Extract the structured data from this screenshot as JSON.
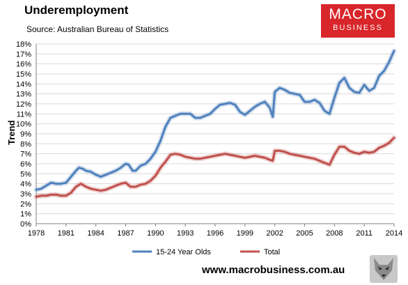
{
  "header": {
    "title": "Underemployment",
    "source": "Source: Australian Bureau of Statistics"
  },
  "logo": {
    "top": "MACRO",
    "bottom": "BUSINESS",
    "color": "#d9262a"
  },
  "footer": {
    "url": "www.macrobusiness.com.au",
    "emblem_icon": "wolf-head-icon"
  },
  "chart_data": {
    "type": "line",
    "title": "Underemployment",
    "ylabel": "Trend",
    "xlabel": "",
    "ylim": [
      0,
      18
    ],
    "xlim": [
      1978,
      2014
    ],
    "x_ticks": [
      "1978",
      "1981",
      "1984",
      "1987",
      "1990",
      "1993",
      "1996",
      "1999",
      "2002",
      "2005",
      "2008",
      "2011",
      "2014"
    ],
    "y_ticks": [
      "0%",
      "1%",
      "2%",
      "3%",
      "4%",
      "5%",
      "6%",
      "7%",
      "8%",
      "9%",
      "10%",
      "11%",
      "12%",
      "13%",
      "14%",
      "15%",
      "16%",
      "17%",
      "18%"
    ],
    "grid": true,
    "legend": "bottom",
    "series": [
      {
        "name": "15-24 Year Olds",
        "color": "#4f81bd",
        "points": [
          [
            1978.0,
            3.4
          ],
          [
            1978.5,
            3.5
          ],
          [
            1979.0,
            3.8
          ],
          [
            1979.5,
            4.1
          ],
          [
            1980.0,
            4.0
          ],
          [
            1980.5,
            4.0
          ],
          [
            1981.0,
            4.1
          ],
          [
            1981.5,
            4.7
          ],
          [
            1982.0,
            5.3
          ],
          [
            1982.3,
            5.6
          ],
          [
            1982.7,
            5.5
          ],
          [
            1983.0,
            5.3
          ],
          [
            1983.5,
            5.2
          ],
          [
            1984.0,
            4.9
          ],
          [
            1984.5,
            4.7
          ],
          [
            1985.0,
            4.9
          ],
          [
            1985.5,
            5.1
          ],
          [
            1986.0,
            5.3
          ],
          [
            1986.5,
            5.6
          ],
          [
            1987.0,
            6.0
          ],
          [
            1987.3,
            5.9
          ],
          [
            1987.7,
            5.3
          ],
          [
            1988.0,
            5.3
          ],
          [
            1988.5,
            5.8
          ],
          [
            1989.0,
            6.0
          ],
          [
            1989.5,
            6.5
          ],
          [
            1990.0,
            7.2
          ],
          [
            1990.5,
            8.3
          ],
          [
            1991.0,
            9.7
          ],
          [
            1991.5,
            10.6
          ],
          [
            1992.0,
            10.8
          ],
          [
            1992.5,
            11.0
          ],
          [
            1993.0,
            11.0
          ],
          [
            1993.5,
            11.0
          ],
          [
            1994.0,
            10.6
          ],
          [
            1994.5,
            10.6
          ],
          [
            1995.0,
            10.8
          ],
          [
            1995.5,
            11.0
          ],
          [
            1996.0,
            11.5
          ],
          [
            1996.5,
            11.9
          ],
          [
            1997.0,
            12.0
          ],
          [
            1997.5,
            12.1
          ],
          [
            1998.0,
            11.9
          ],
          [
            1998.5,
            11.2
          ],
          [
            1999.0,
            10.9
          ],
          [
            1999.5,
            11.3
          ],
          [
            2000.0,
            11.7
          ],
          [
            2000.5,
            12.0
          ],
          [
            2001.0,
            12.2
          ],
          [
            2001.5,
            11.6
          ],
          [
            2001.8,
            10.7
          ],
          [
            2002.0,
            13.2
          ],
          [
            2002.5,
            13.6
          ],
          [
            2003.0,
            13.4
          ],
          [
            2003.5,
            13.1
          ],
          [
            2004.0,
            13.0
          ],
          [
            2004.5,
            12.9
          ],
          [
            2005.0,
            12.2
          ],
          [
            2005.5,
            12.2
          ],
          [
            2006.0,
            12.4
          ],
          [
            2006.5,
            12.1
          ],
          [
            2007.0,
            11.3
          ],
          [
            2007.5,
            11.0
          ],
          [
            2008.0,
            12.6
          ],
          [
            2008.5,
            14.1
          ],
          [
            2009.0,
            14.6
          ],
          [
            2009.5,
            13.6
          ],
          [
            2010.0,
            13.2
          ],
          [
            2010.5,
            13.1
          ],
          [
            2011.0,
            13.9
          ],
          [
            2011.5,
            13.3
          ],
          [
            2012.0,
            13.6
          ],
          [
            2012.5,
            14.8
          ],
          [
            2013.0,
            15.3
          ],
          [
            2013.5,
            16.2
          ],
          [
            2014.0,
            17.3
          ]
        ]
      },
      {
        "name": "Total",
        "color": "#c0504d",
        "points": [
          [
            1978.0,
            2.7
          ],
          [
            1978.5,
            2.8
          ],
          [
            1979.0,
            2.8
          ],
          [
            1979.5,
            2.9
          ],
          [
            1980.0,
            2.9
          ],
          [
            1980.5,
            2.8
          ],
          [
            1981.0,
            2.8
          ],
          [
            1981.5,
            3.1
          ],
          [
            1982.0,
            3.7
          ],
          [
            1982.5,
            4.0
          ],
          [
            1983.0,
            3.7
          ],
          [
            1983.5,
            3.5
          ],
          [
            1984.0,
            3.4
          ],
          [
            1984.5,
            3.3
          ],
          [
            1985.0,
            3.4
          ],
          [
            1985.5,
            3.6
          ],
          [
            1986.0,
            3.8
          ],
          [
            1986.5,
            4.0
          ],
          [
            1987.0,
            4.1
          ],
          [
            1987.5,
            3.7
          ],
          [
            1988.0,
            3.7
          ],
          [
            1988.5,
            3.9
          ],
          [
            1989.0,
            4.0
          ],
          [
            1989.5,
            4.3
          ],
          [
            1990.0,
            4.8
          ],
          [
            1990.5,
            5.6
          ],
          [
            1991.0,
            6.2
          ],
          [
            1991.5,
            6.9
          ],
          [
            1992.0,
            7.0
          ],
          [
            1992.5,
            6.9
          ],
          [
            1993.0,
            6.7
          ],
          [
            1993.5,
            6.6
          ],
          [
            1994.0,
            6.5
          ],
          [
            1994.5,
            6.5
          ],
          [
            1995.0,
            6.6
          ],
          [
            1995.5,
            6.7
          ],
          [
            1996.0,
            6.8
          ],
          [
            1996.5,
            6.9
          ],
          [
            1997.0,
            7.0
          ],
          [
            1997.5,
            6.9
          ],
          [
            1998.0,
            6.8
          ],
          [
            1998.5,
            6.7
          ],
          [
            1999.0,
            6.6
          ],
          [
            1999.5,
            6.7
          ],
          [
            2000.0,
            6.8
          ],
          [
            2000.5,
            6.7
          ],
          [
            2001.0,
            6.6
          ],
          [
            2001.5,
            6.4
          ],
          [
            2001.8,
            6.3
          ],
          [
            2002.0,
            7.3
          ],
          [
            2002.5,
            7.3
          ],
          [
            2003.0,
            7.2
          ],
          [
            2003.5,
            7.0
          ],
          [
            2004.0,
            6.9
          ],
          [
            2004.5,
            6.8
          ],
          [
            2005.0,
            6.7
          ],
          [
            2005.5,
            6.6
          ],
          [
            2006.0,
            6.5
          ],
          [
            2006.5,
            6.3
          ],
          [
            2007.0,
            6.1
          ],
          [
            2007.5,
            5.9
          ],
          [
            2008.0,
            6.9
          ],
          [
            2008.5,
            7.7
          ],
          [
            2009.0,
            7.7
          ],
          [
            2009.5,
            7.3
          ],
          [
            2010.0,
            7.1
          ],
          [
            2010.5,
            7.0
          ],
          [
            2011.0,
            7.2
          ],
          [
            2011.5,
            7.1
          ],
          [
            2012.0,
            7.2
          ],
          [
            2012.5,
            7.6
          ],
          [
            2013.0,
            7.8
          ],
          [
            2013.5,
            8.1
          ],
          [
            2014.0,
            8.6
          ]
        ]
      }
    ]
  }
}
